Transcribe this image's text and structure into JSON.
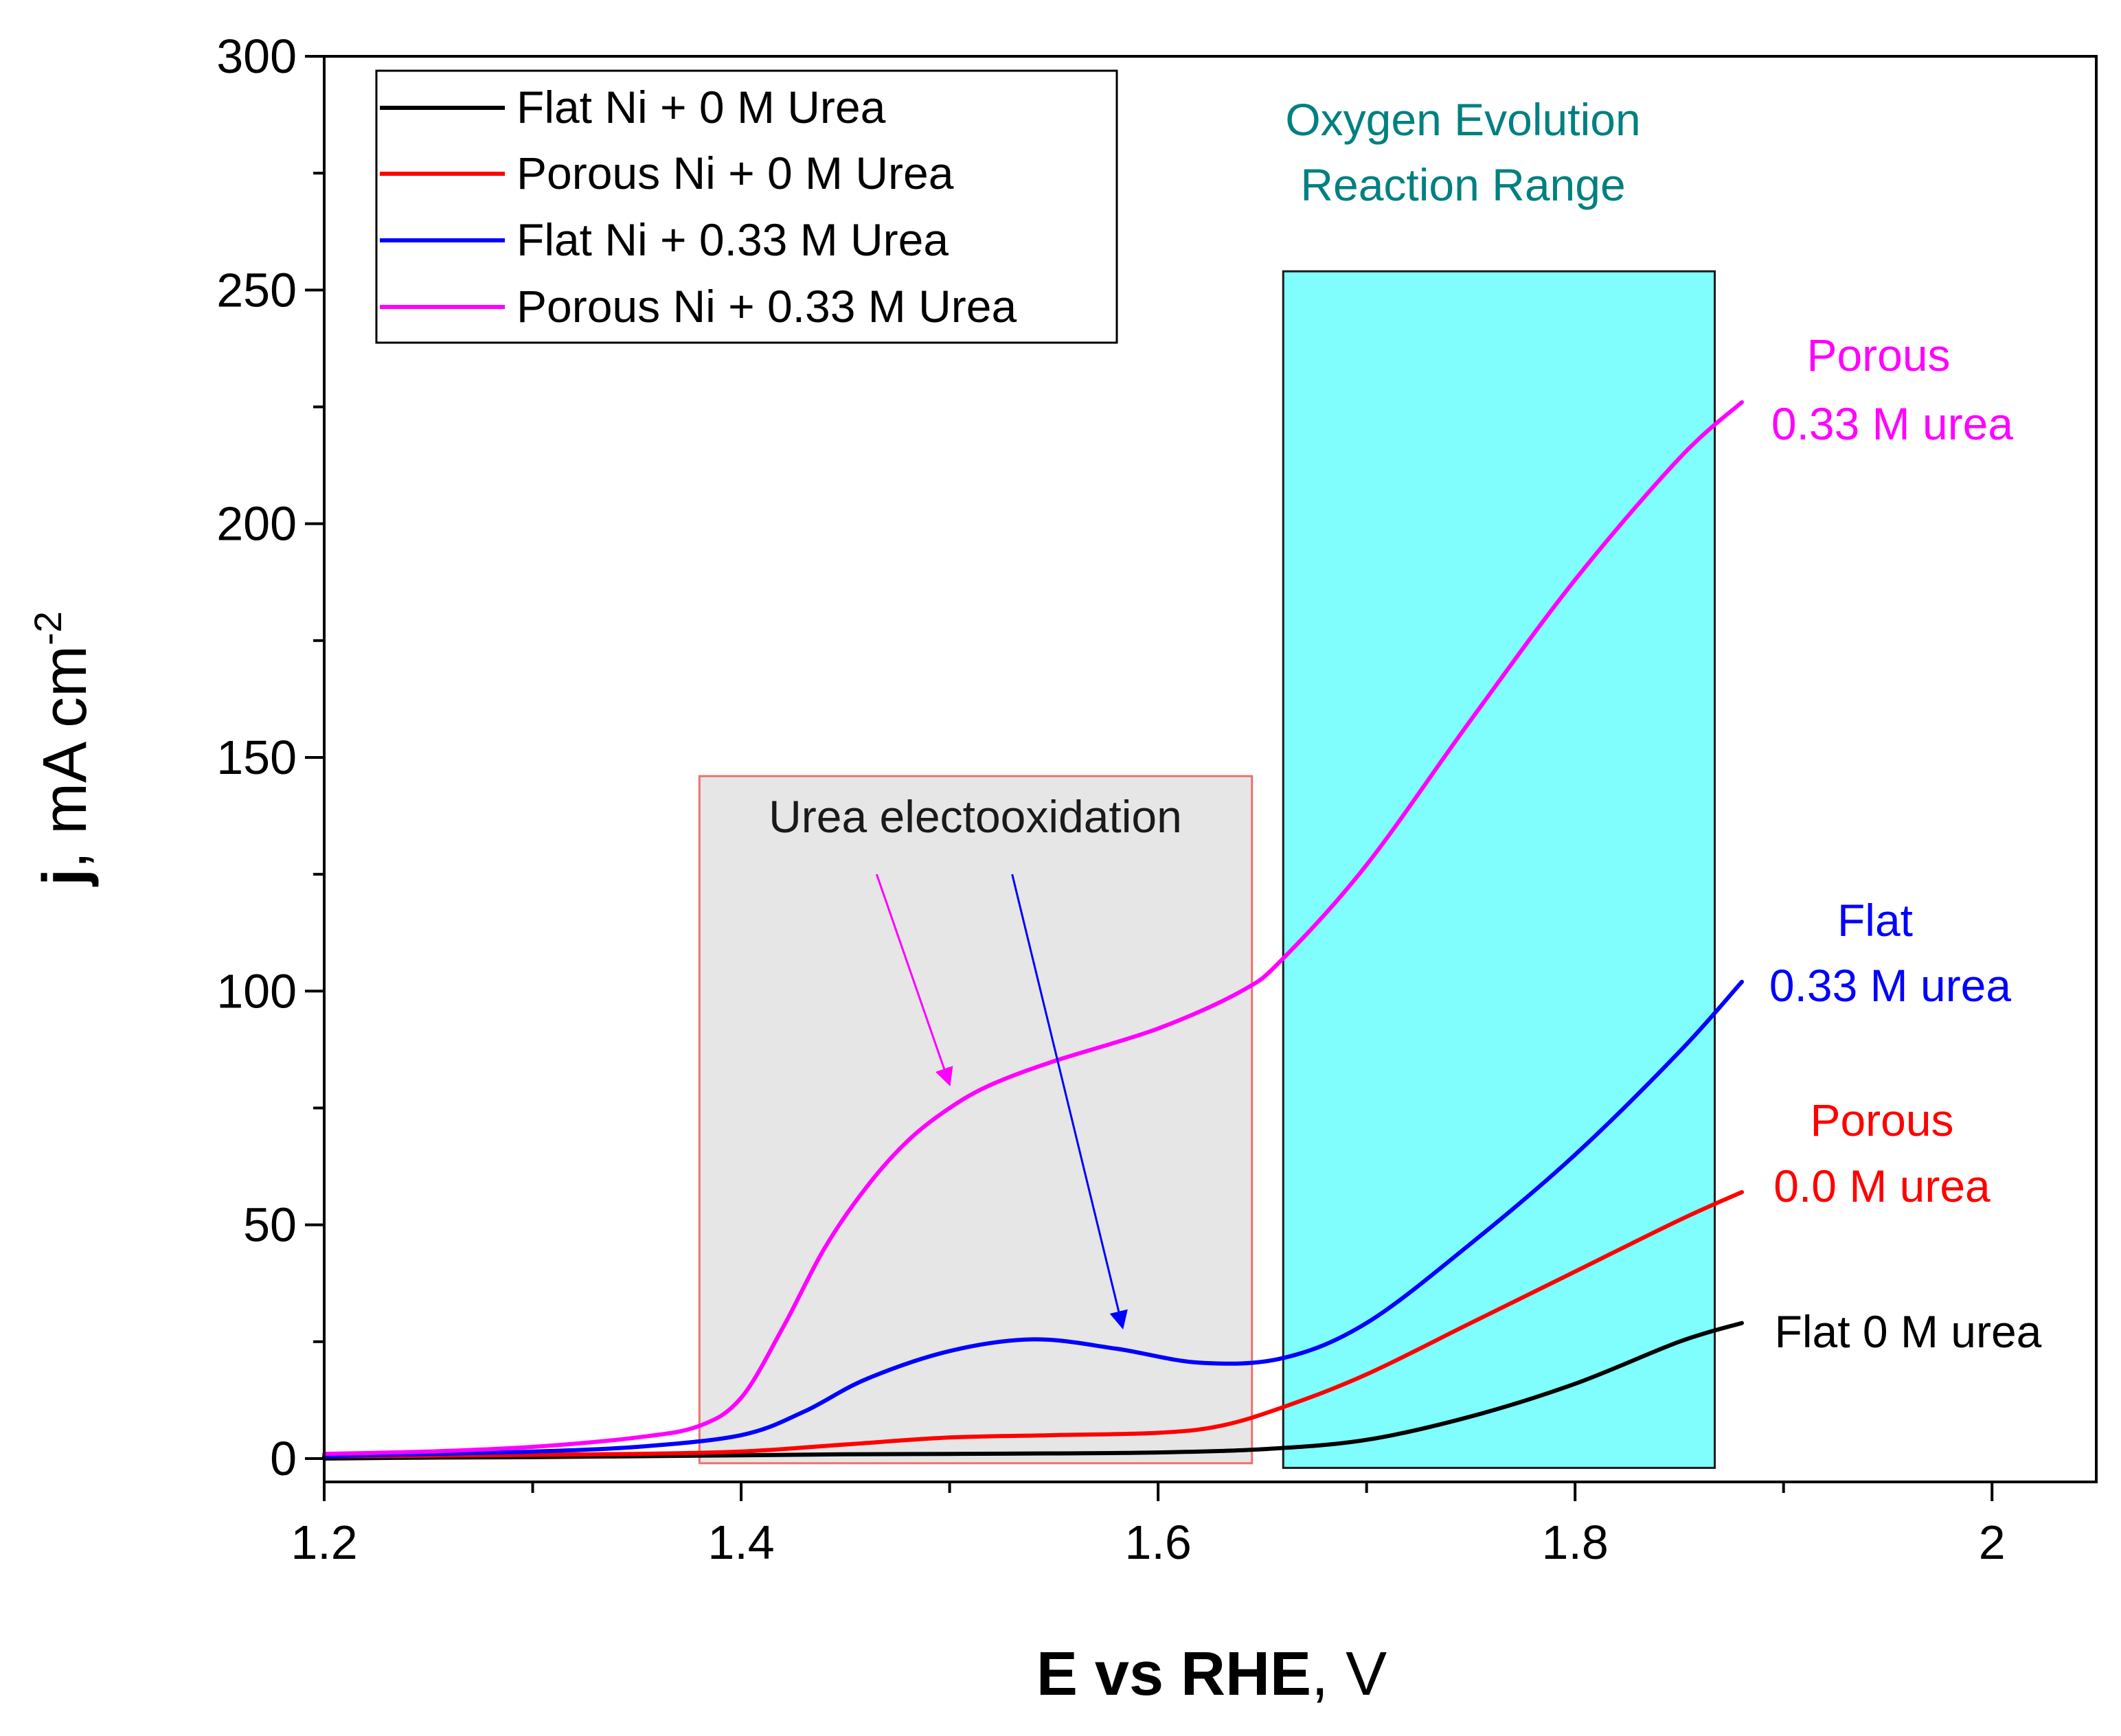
{
  "chart_data": {
    "type": "line",
    "title": "",
    "xlabel": "E vs RHE, V",
    "xlabel_bold": "E vs RHE",
    "xlabel_unit": "V",
    "ylabel": "j, mA cm-2",
    "ylabel_bold": "j",
    "ylabel_unit": "mA cm",
    "ylabel_exp": "-2",
    "xlim": [
      1.2,
      2.05
    ],
    "ylim": [
      -5,
      300
    ],
    "xticks": [
      1.2,
      1.4,
      1.6,
      1.8,
      2.0
    ],
    "xtick_labels": [
      "1.2",
      "1.4",
      "1.6",
      "1.8",
      "2"
    ],
    "yticks": [
      0,
      50,
      100,
      150,
      200,
      250,
      300
    ],
    "ytick_labels": [
      "0",
      "50",
      "100",
      "150",
      "200",
      "250",
      "300"
    ],
    "grid": false,
    "legend_position": "top-left",
    "series": [
      {
        "name": "Flat Ni + 0 M Urea",
        "color": "#000000",
        "x": [
          1.2,
          1.25,
          1.3,
          1.35,
          1.4,
          1.45,
          1.5,
          1.55,
          1.6,
          1.65,
          1.7,
          1.75,
          1.8,
          1.85,
          1.88
        ],
        "y": [
          0,
          0.2,
          0.3,
          0.5,
          0.7,
          0.9,
          1.0,
          1.1,
          1.3,
          2.0,
          4.0,
          9.0,
          16.0,
          25.0,
          29.0
        ]
      },
      {
        "name": "Porous Ni + 0 M Urea",
        "color": "#ff0000",
        "x": [
          1.2,
          1.25,
          1.3,
          1.35,
          1.4,
          1.45,
          1.5,
          1.55,
          1.6,
          1.63,
          1.66,
          1.7,
          1.75,
          1.8,
          1.85,
          1.88
        ],
        "y": [
          0.5,
          0.6,
          0.8,
          1.0,
          1.5,
          3.0,
          4.5,
          5.0,
          5.5,
          7.0,
          11.0,
          18.0,
          29.0,
          40.0,
          51.0,
          57.0
        ]
      },
      {
        "name": "Flat Ni + 0.33 M Urea",
        "color": "#0000ff",
        "x": [
          1.2,
          1.25,
          1.3,
          1.35,
          1.4,
          1.43,
          1.46,
          1.5,
          1.54,
          1.58,
          1.62,
          1.66,
          1.7,
          1.75,
          1.8,
          1.85,
          1.88
        ],
        "y": [
          0.5,
          1.0,
          1.5,
          2.5,
          5.0,
          10.0,
          17.0,
          23.0,
          25.5,
          23.5,
          20.5,
          21.5,
          29.0,
          46.0,
          65.0,
          87.0,
          102.0
        ]
      },
      {
        "name": "Porous Ni + 0.33 M Urea",
        "color": "#ff00ff",
        "x": [
          1.2,
          1.25,
          1.3,
          1.35,
          1.38,
          1.4,
          1.42,
          1.44,
          1.46,
          1.48,
          1.5,
          1.52,
          1.55,
          1.6,
          1.64,
          1.66,
          1.7,
          1.75,
          1.8,
          1.85,
          1.88
        ],
        "y": [
          1.0,
          1.5,
          2.5,
          4.5,
          7.0,
          13.0,
          28.0,
          45.0,
          58.0,
          68.0,
          75.0,
          80.0,
          85.0,
          92.0,
          100.0,
          107.0,
          127.0,
          158.0,
          188.0,
          214.0,
          226.0
        ]
      }
    ],
    "regions": {
      "urea": {
        "label": "Urea electooxidation",
        "x0": 1.38,
        "x1": 1.645,
        "y0": -1,
        "y1": 146
      },
      "oer": {
        "label_line1": "Oxygen Evolution",
        "label_line2": "Reaction Range",
        "x0": 1.66,
        "x1": 1.867,
        "y0": -2,
        "y1": 254
      }
    },
    "annotations": [
      {
        "line1": "Porous",
        "line2": "0.33 M urea",
        "color": "#ff00ff"
      },
      {
        "line1": "Flat",
        "line2": "0.33 M urea",
        "color": "#0000ff"
      },
      {
        "line1": "Porous",
        "line2": "0.0 M urea",
        "color": "#ff0000"
      },
      {
        "line1": "Flat 0 M urea",
        "color": "#000000"
      }
    ],
    "arrows": [
      {
        "from": [
          1.53,
          125
        ],
        "to": [
          1.583,
          28
        ],
        "color": "#0000ff",
        "target": "Flat Ni + 0.33 M Urea"
      },
      {
        "from": [
          1.465,
          125
        ],
        "to": [
          1.5,
          80
        ],
        "color": "#ff00ff",
        "target": "Porous Ni + 0.33 M Urea"
      }
    ]
  }
}
